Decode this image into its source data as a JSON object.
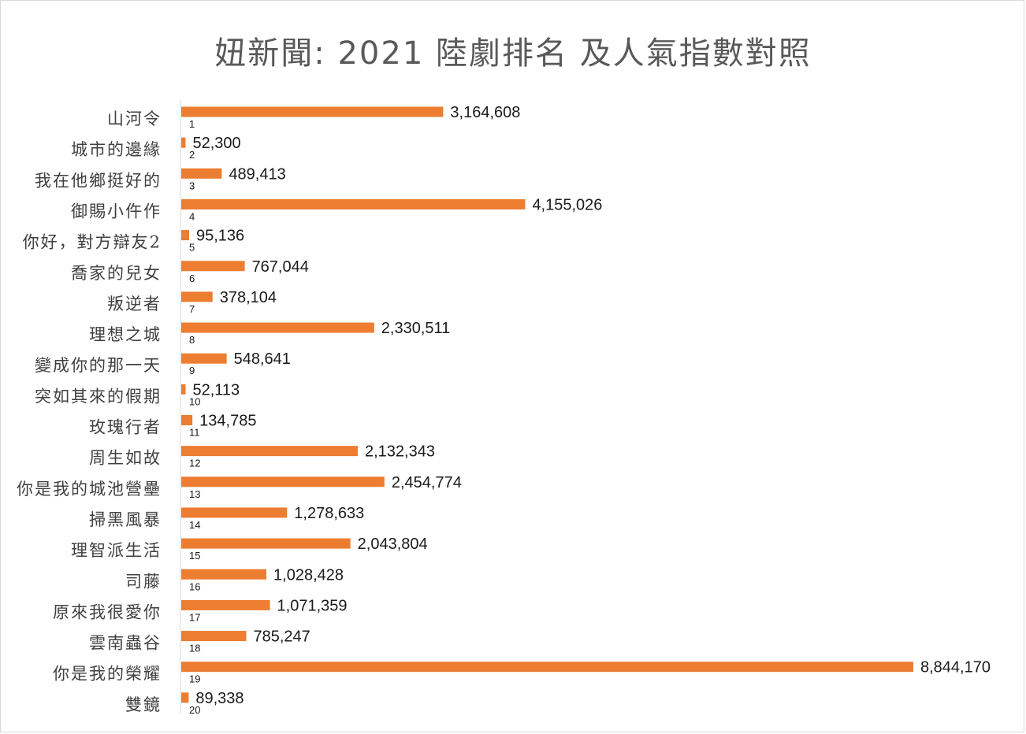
{
  "chart_data": {
    "type": "bar",
    "orientation": "horizontal",
    "title": "妞新聞: 2021 陸劇排名 及人氣指數對照",
    "categories": [
      "山河令",
      "城市的邊緣",
      "我在他鄉挺好的",
      "御賜小仵作",
      "你好，對方辯友2",
      "喬家的兒女",
      "叛逆者",
      "理想之城",
      "變成你的那一天",
      "突如其來的假期",
      "玫瑰行者",
      "周生如故",
      "你是我的城池營壘",
      "掃黑風暴",
      "理智派生活",
      "司藤",
      "原來我很愛你",
      "雲南蟲谷",
      "你是我的榮耀",
      "雙鏡"
    ],
    "series": [
      {
        "values": [
          3164608,
          52300,
          489413,
          4155026,
          95136,
          767044,
          378104,
          2330511,
          548641,
          52113,
          134785,
          2132343,
          2454774,
          1278633,
          2043804,
          1028428,
          1071359,
          785247,
          8844170,
          89338
        ]
      }
    ],
    "data_labels": [
      "3,164,608",
      "52,300",
      "489,413",
      "4,155,026",
      "95,136",
      "767,044",
      "378,104",
      "2,330,511",
      "548,641",
      "52,113",
      "134,785",
      "2,132,343",
      "2,454,774",
      "1,278,633",
      "2,043,804",
      "1,028,428",
      "1,071,359",
      "785,247",
      "8,844,170",
      "89,338"
    ],
    "secondary_labels": [
      "1",
      "2",
      "3",
      "4",
      "5",
      "6",
      "7",
      "8",
      "9",
      "10",
      "11",
      "12",
      "13",
      "14",
      "15",
      "16",
      "17",
      "18",
      "19",
      "20"
    ],
    "bar_color": "#ed7d31",
    "xlim": [
      0,
      8844170
    ],
    "grid": false,
    "legend": "none"
  }
}
